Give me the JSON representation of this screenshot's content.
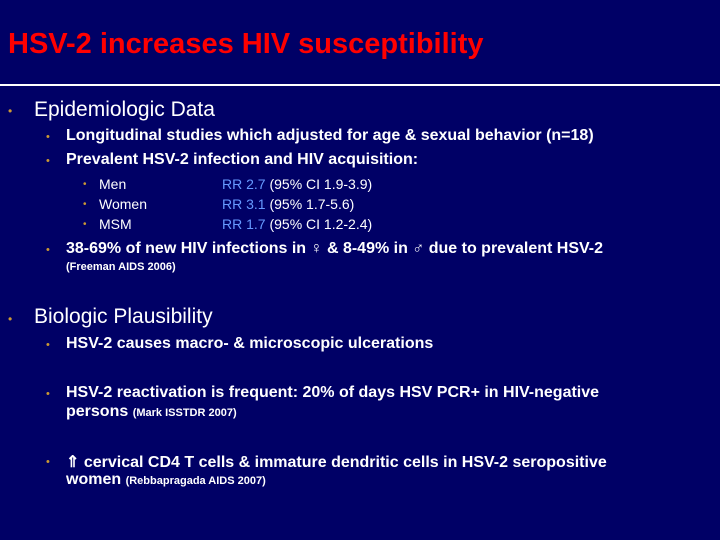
{
  "title": "HSV-2 increases HIV susceptibility",
  "bullet_char": "•",
  "epi": {
    "heading": "Epidemiologic Data",
    "items": [
      "Longitudinal studies which adjusted for age & sexual behavior (n=18)",
      "Prevalent HSV-2 infection and HIV acquisition:"
    ],
    "groups": [
      {
        "name": "Men",
        "rr": "RR 2.7",
        "ci": "(95% CI 1.9-3.9)"
      },
      {
        "name": "Women",
        "rr": "RR 3.1",
        "ci": "(95% 1.7-5.6)"
      },
      {
        "name": "MSM",
        "rr": "RR 1.7",
        "ci": "(95% CI 1.2-2.4)"
      }
    ],
    "attributable": "38-69% of new HIV infections in ♀ & 8-49% in ♂ due to prevalent HSV-2",
    "attributable_ref": "(Freeman AIDS 2006)"
  },
  "bio": {
    "heading": "Biologic Plausibility",
    "item1": "HSV-2 causes macro- & microscopic ulcerations",
    "item2_line1": "HSV-2 reactivation is frequent: 20% of days HSV PCR+ in HIV-negative",
    "item2_line2": "persons",
    "item2_ref": "(Mark ISSTDR 2007)",
    "item3_arrow": "⇑",
    "item3_line1": "cervical CD4 T cells & immature dendritic cells in HSV-2 seropositive",
    "item3_line2": "women",
    "item3_ref": "(Rebbapragada AIDS 2007)"
  },
  "colors": {
    "background": "#000066",
    "title": "#ff0000",
    "bullet": "#cc9933",
    "rr": "#6699ff",
    "text": "#ffffff"
  }
}
